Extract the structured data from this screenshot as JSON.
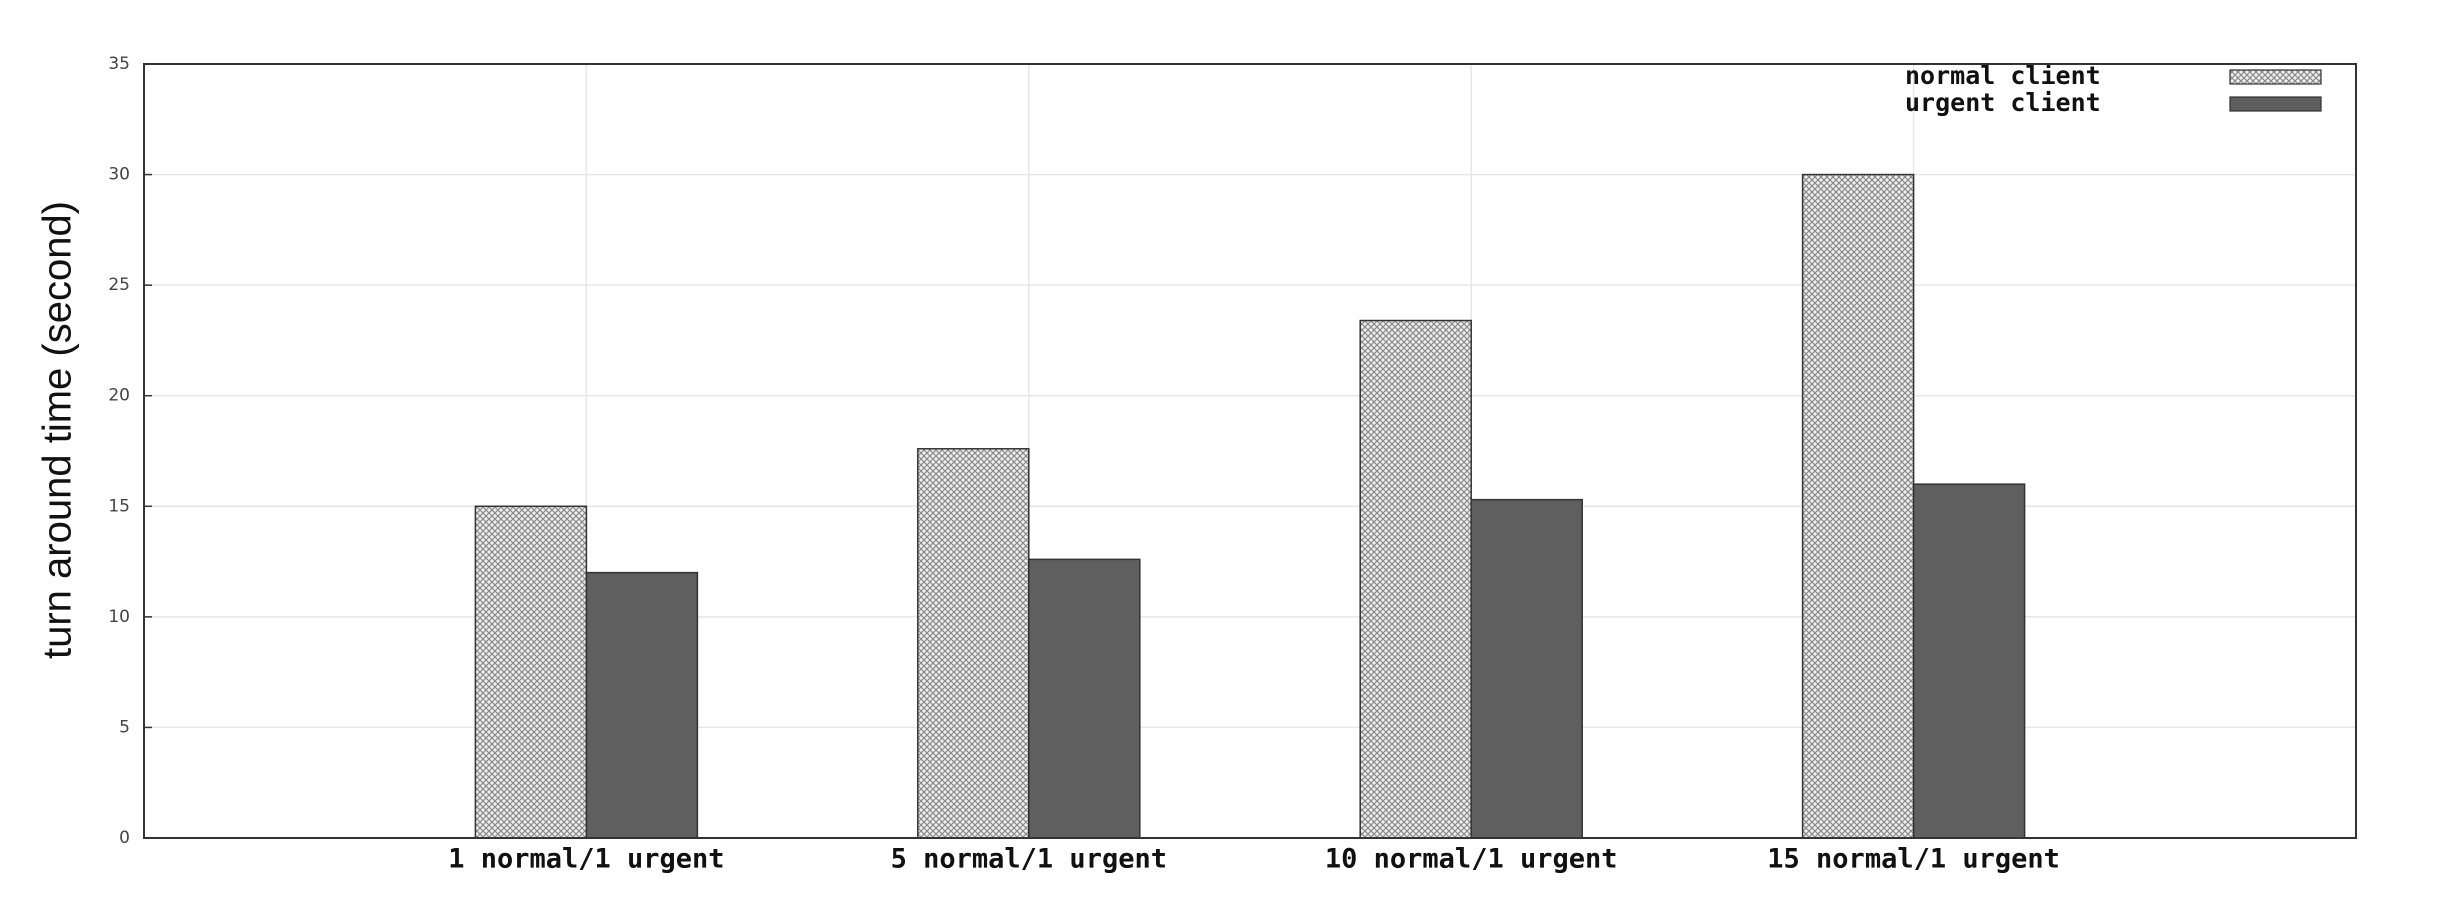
{
  "chart_data": {
    "type": "bar",
    "ylabel": "turn around time (second)",
    "categories": [
      "1 normal/1 urgent",
      "5 normal/1 urgent",
      "10 normal/1 urgent",
      "15 normal/1 urgent"
    ],
    "series": [
      {
        "name": "normal client",
        "color": "#d0d0d0",
        "values": [
          15,
          17.6,
          23.4,
          30
        ]
      },
      {
        "name": "urgent client",
        "color": "#5f5f5f",
        "values": [
          12,
          12.6,
          15.3,
          16
        ]
      }
    ],
    "ylim": [
      0,
      35
    ],
    "yticks": [
      0,
      5,
      10,
      15,
      20,
      25,
      30,
      35
    ],
    "grid": true,
    "legend": "upper right"
  }
}
